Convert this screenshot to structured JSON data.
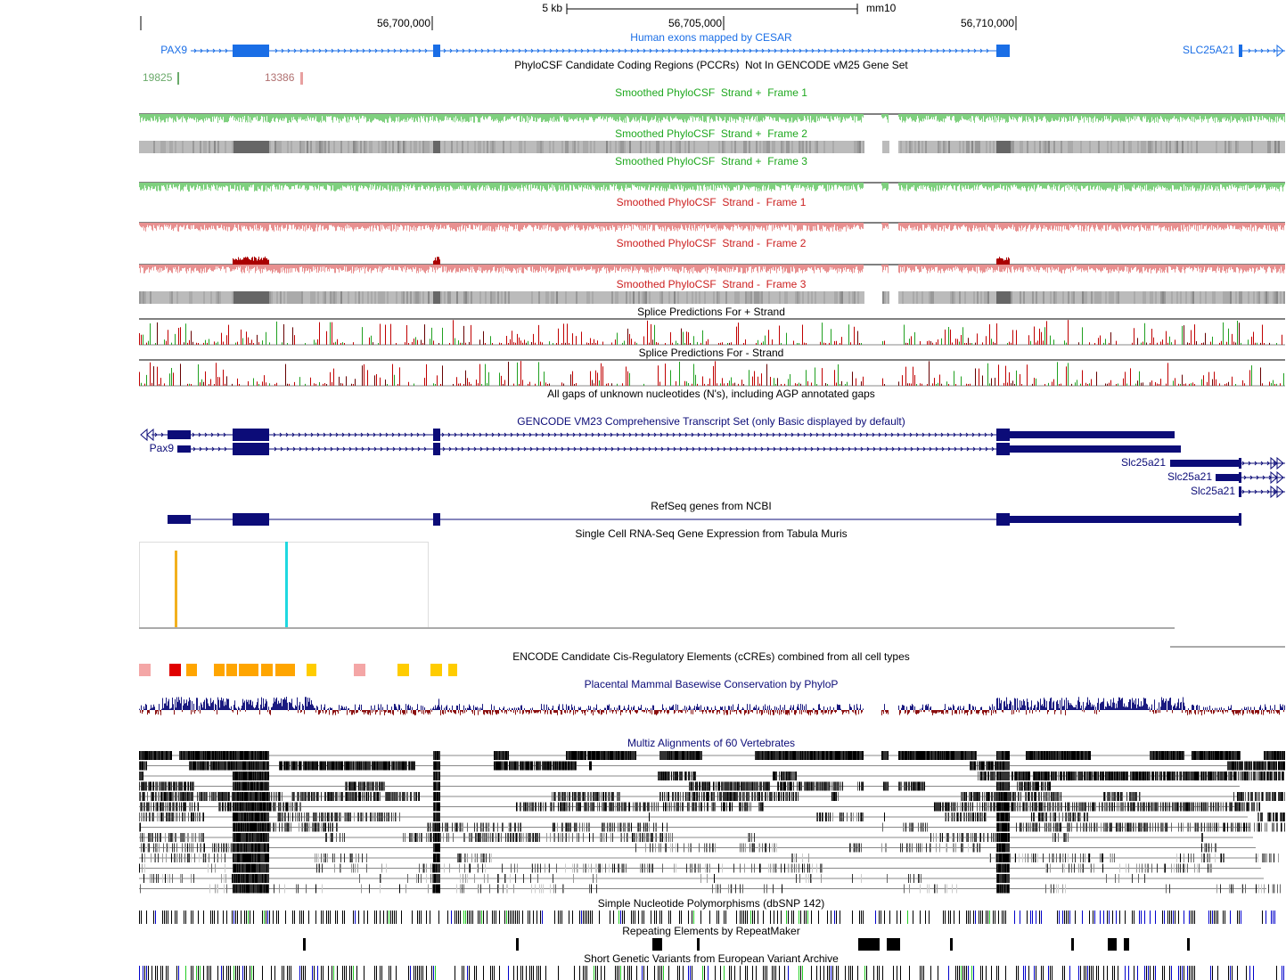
{
  "ruler": {
    "scale": "5 kb",
    "assembly": "mm10",
    "positions": [
      "56,700,000",
      "56,705,000",
      "56,710,000"
    ]
  },
  "tracks": {
    "cesar": {
      "title": "Human exons mapped by CESAR",
      "genes": [
        "PAX9",
        "SLC25A21"
      ]
    },
    "pccr": {
      "title": "PhyloCSF Candidate Coding Regions (PCCRs)  Not In GENCODE vM25 Gene Set",
      "items": [
        "19825",
        "13386"
      ]
    },
    "phylocsf": [
      "Smoothed PhyloCSF  Strand +  Frame 1",
      "Smoothed PhyloCSF  Strand +  Frame 2",
      "Smoothed PhyloCSF  Strand +  Frame 3",
      "Smoothed PhyloCSF  Strand -  Frame 1",
      "Smoothed PhyloCSF  Strand -  Frame 2",
      "Smoothed PhyloCSF  Strand -  Frame 3"
    ],
    "splice": [
      "Splice Predictions For + Strand",
      "Splice Predictions For - Strand"
    ],
    "gaps": {
      "title": "All gaps of unknown nucleotides (N's), including AGP annotated gaps"
    },
    "gencode": {
      "title": "GENCODE VM23 Comprehensive Transcript Set (only Basic displayed by default)",
      "genes": [
        "Pax9",
        "Slc25a21",
        "Slc25a21",
        "Slc25a21"
      ]
    },
    "refseq": {
      "title": "RefSeq genes from NCBI"
    },
    "tabula_muris": {
      "title": "Single Cell RNA-Seq Gene Expression from Tabula Muris"
    },
    "ccre": {
      "title": "ENCODE Candidate Cis-Regulatory Elements (cCREs) combined from all cell types"
    },
    "phylop": {
      "title": "Placental Mammal Basewise Conservation by PhyloP"
    },
    "multiz": {
      "title": "Multiz Alignments of 60 Vertebrates"
    },
    "dbsnp": {
      "title": "Simple Nucleotide Polymorphisms (dbSNP 142)"
    },
    "repeatmasker": {
      "title": "Repeating Elements by RepeatMaker"
    },
    "eva": {
      "title": "Short Genetic Variants from European Variant Archive"
    }
  }
}
